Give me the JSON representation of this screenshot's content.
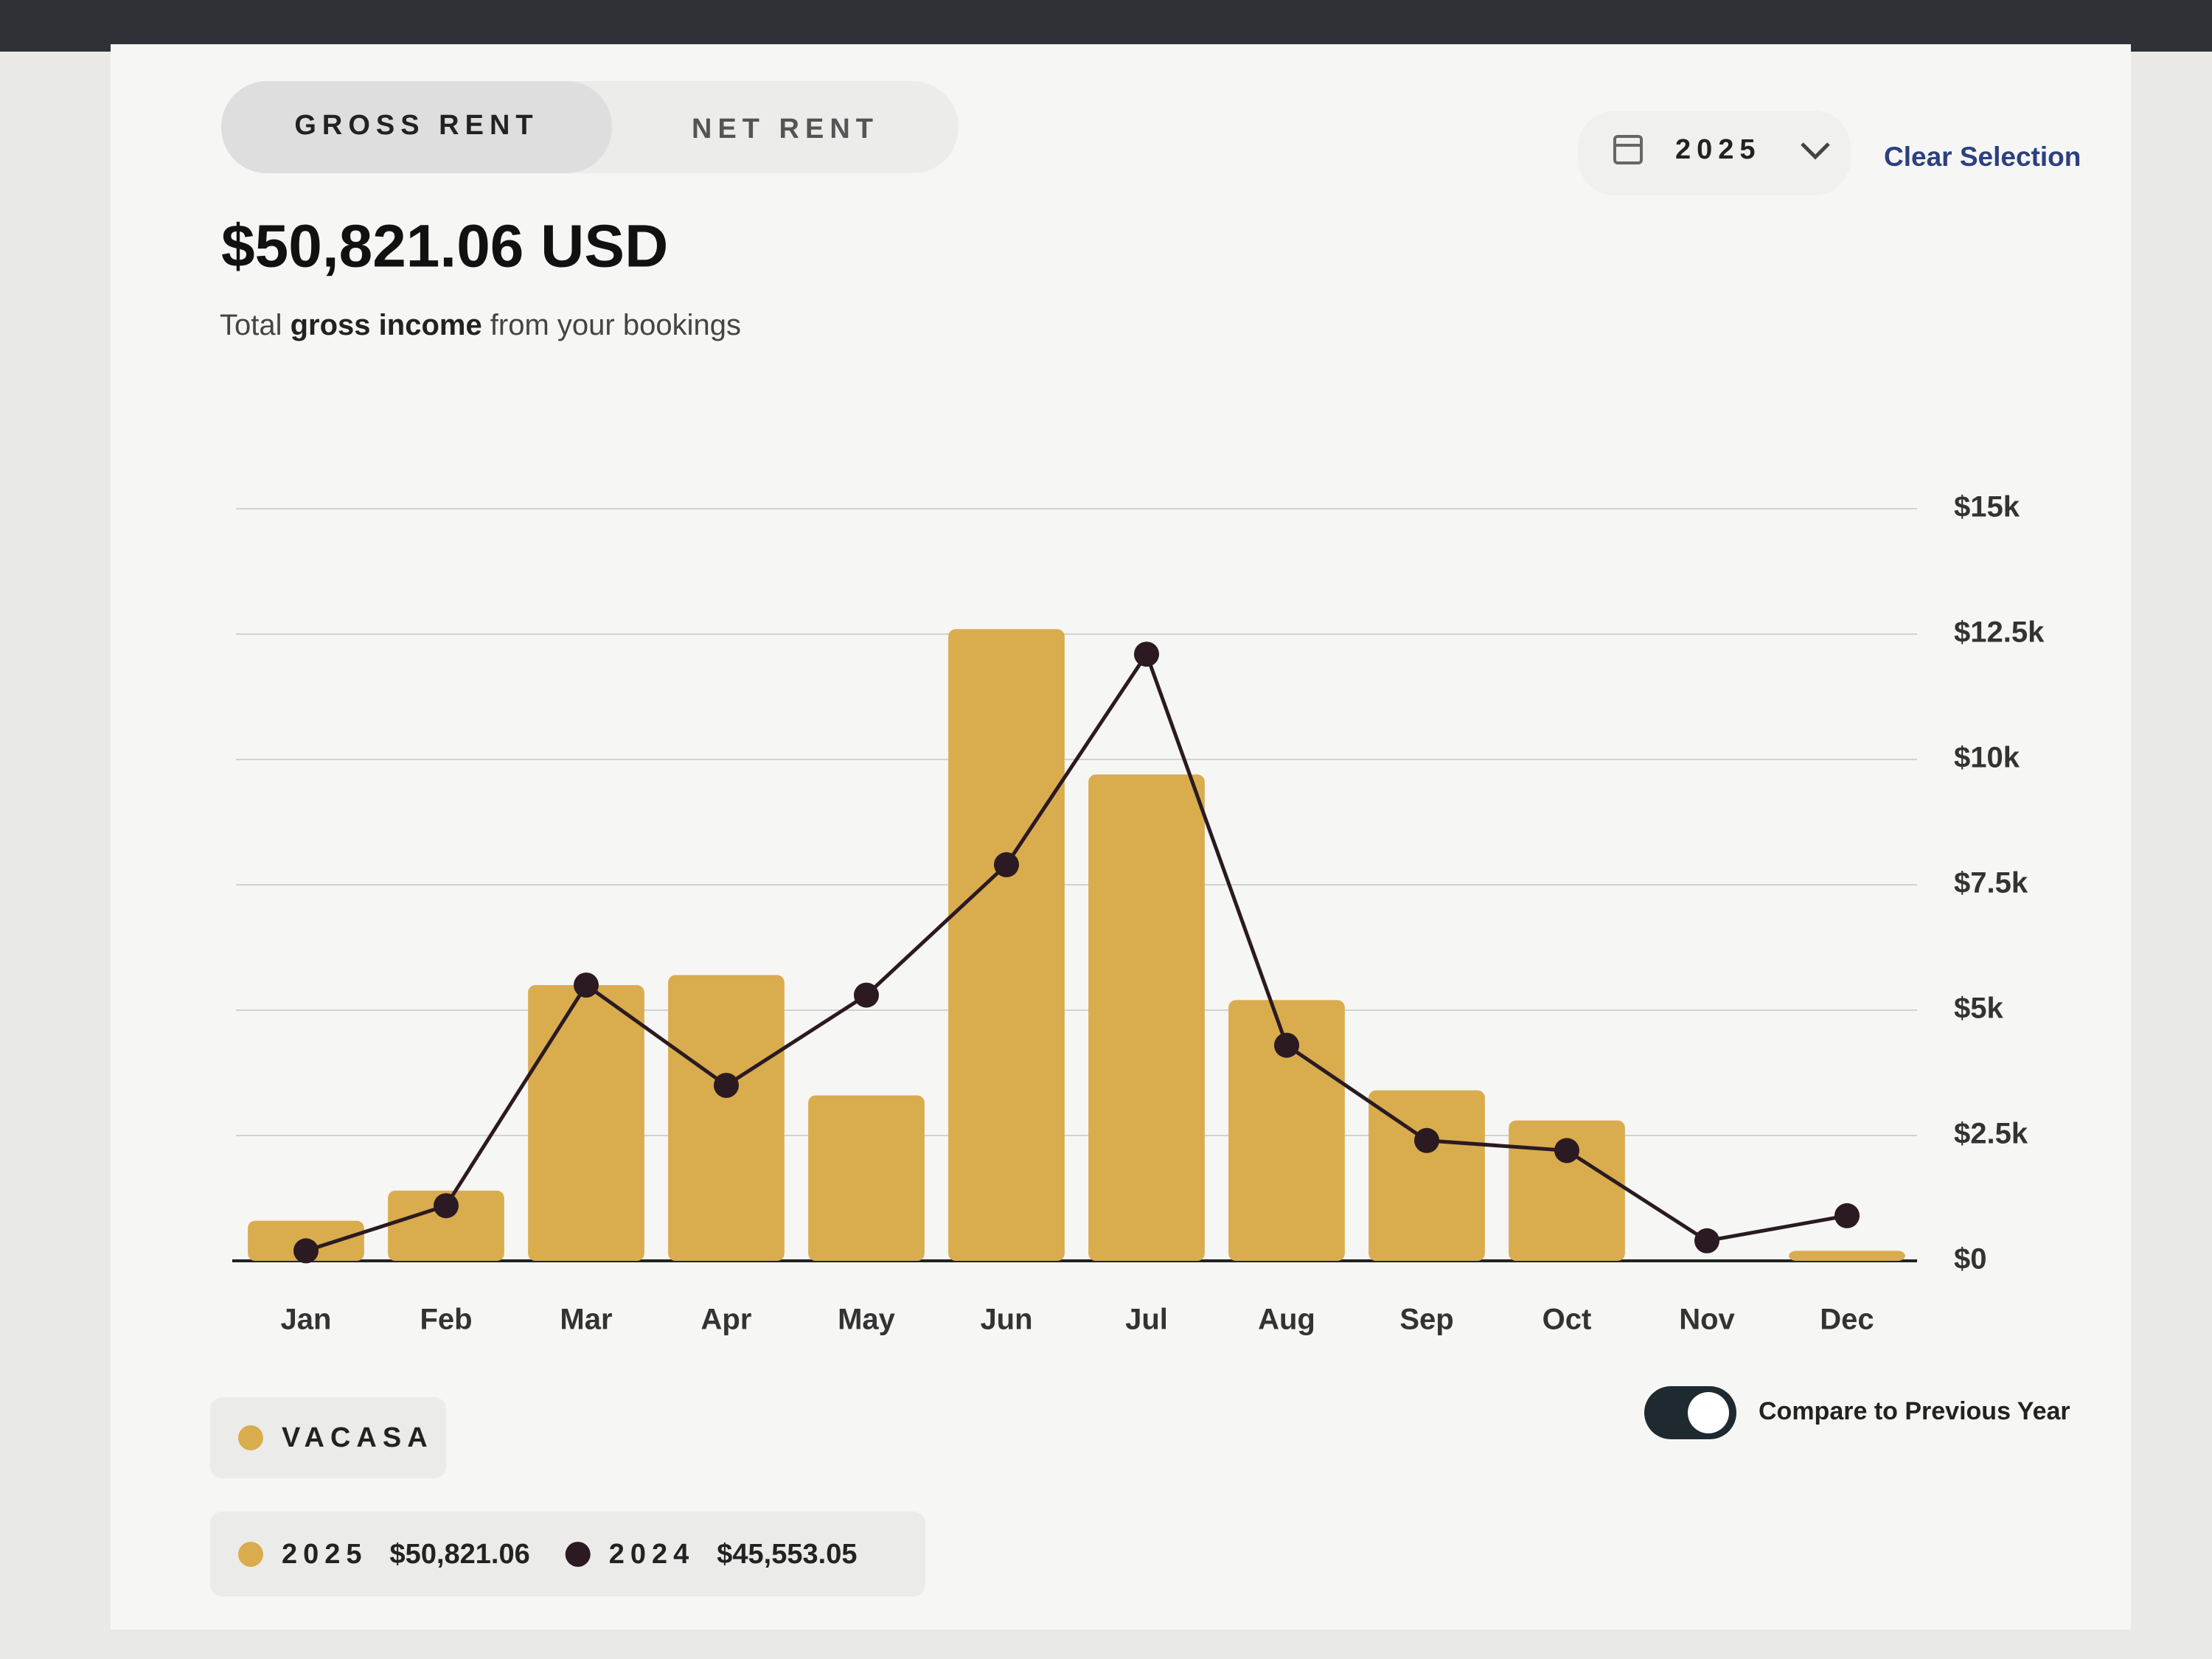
{
  "tabs": [
    "GROSS RENT",
    "NET RENT"
  ],
  "year_picker": "2025",
  "clear_selection": "Clear Selection",
  "total": "$50,821.06 USD",
  "subtitle": [
    "Total ",
    "gross income",
    " from your bookings"
  ],
  "source_chip": "VACASA",
  "compare_toggle": "Compare to Previous Year",
  "chart_data": {
    "type": "bar",
    "categories": [
      "Jan",
      "Feb",
      "Mar",
      "Apr",
      "May",
      "Jun",
      "Jul",
      "Aug",
      "Sep",
      "Oct",
      "Nov",
      "Dec"
    ],
    "series": [
      {
        "name": "2025",
        "type": "bar",
        "color": "#d9ac4e",
        "total_label": "$50,821.06",
        "values": [
          800,
          1400,
          5500,
          5700,
          3300,
          12600,
          9700,
          5200,
          3400,
          2800,
          0,
          200
        ]
      },
      {
        "name": "2024",
        "type": "line",
        "color": "#2b1a21",
        "total_label": "$45,553.05",
        "values": [
          200,
          1100,
          5500,
          3500,
          5300,
          7900,
          12100,
          4300,
          2400,
          2200,
          400,
          900
        ]
      }
    ],
    "ylim": [
      0,
      15000
    ],
    "yticks": [
      {
        "value": 0,
        "label": "$0"
      },
      {
        "value": 2500,
        "label": "$2.5k"
      },
      {
        "value": 5000,
        "label": "$5k"
      },
      {
        "value": 7500,
        "label": "$7.5k"
      },
      {
        "value": 10000,
        "label": "$10k"
      },
      {
        "value": 12500,
        "label": "$12.5k"
      },
      {
        "value": 15000,
        "label": "$15k"
      }
    ],
    "grid": true
  }
}
